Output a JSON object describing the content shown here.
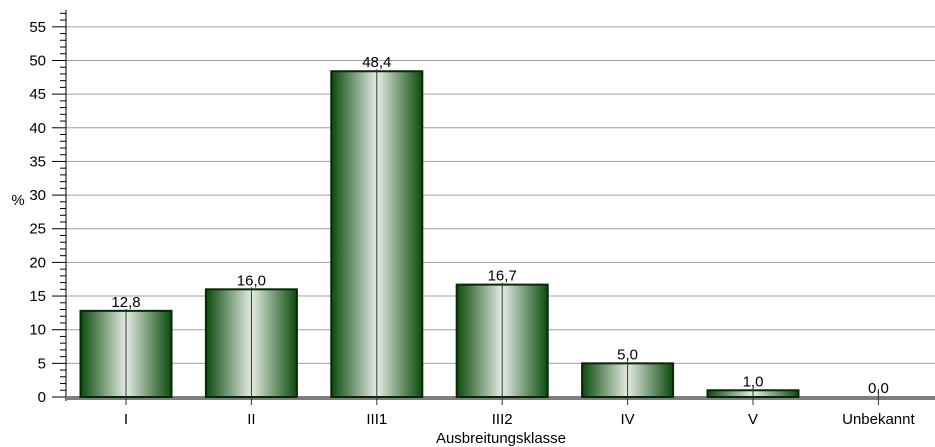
{
  "chart_data": {
    "type": "bar",
    "title": "",
    "xlabel": "Ausbreitungsklasse",
    "ylabel": "%",
    "categories": [
      "I",
      "II",
      "III1",
      "III2",
      "IV",
      "V",
      "Unbekannt"
    ],
    "values": [
      12.8,
      16.0,
      48.4,
      16.7,
      5.0,
      1.0,
      0.0
    ],
    "value_labels": [
      "12,8",
      "16,0",
      "48,4",
      "16,7",
      "5,0",
      "1,0",
      "0,0"
    ],
    "ylim": [
      0,
      57.5
    ],
    "yticks": [
      0,
      5,
      10,
      15,
      20,
      25,
      30,
      35,
      40,
      45,
      50,
      55
    ],
    "grid": true,
    "legend": "none",
    "colors": {
      "bar_dark": "#0c4a0c",
      "bar_light": "#e4ece4",
      "grid": "#a0a0a0",
      "baseline": "#7f7f7f"
    }
  }
}
